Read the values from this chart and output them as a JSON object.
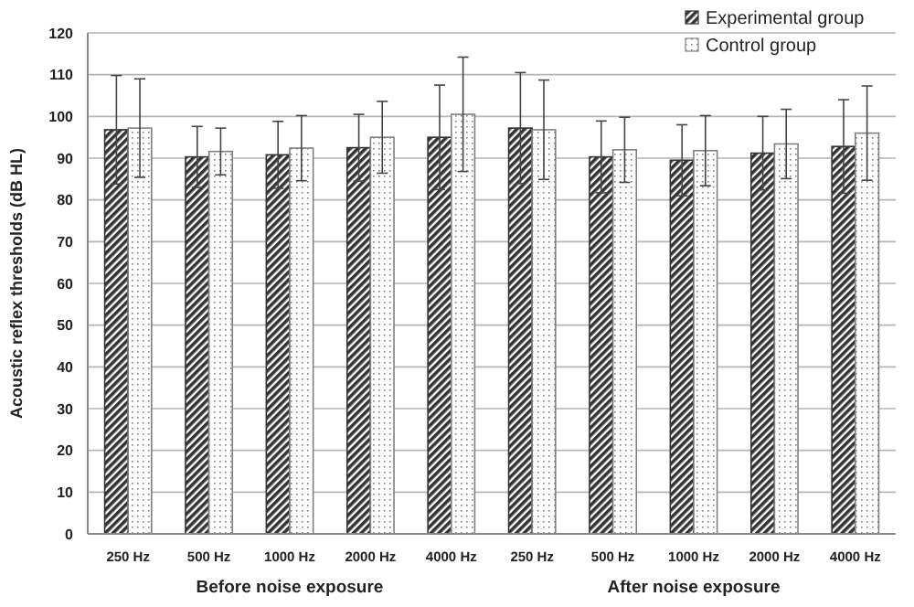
{
  "chart_data": {
    "type": "bar",
    "ylabel": "Acoustic reflex thresholds (dB HL)",
    "categories": [
      "250 Hz",
      "500 Hz",
      "1000 Hz",
      "2000 Hz",
      "4000 Hz",
      "250 Hz",
      "500 Hz",
      "1000 Hz",
      "2000 Hz",
      "4000 Hz"
    ],
    "series": [
      {
        "name": "Experimental group",
        "color": "#333333",
        "values": [
          96.8,
          90.3,
          90.8,
          92.5,
          95.0,
          97.2,
          90.3,
          89.5,
          91.2,
          92.8
        ],
        "errors": [
          13,
          7.3,
          8,
          8,
          12.5,
          13.3,
          8.6,
          8.5,
          8.8,
          11.2
        ]
      },
      {
        "name": "Control group",
        "color": "#808080",
        "values": [
          97.2,
          91.6,
          92.4,
          95.0,
          100.5,
          96.8,
          92.0,
          91.8,
          93.4,
          96.0
        ],
        "errors": [
          11.8,
          5.6,
          7.8,
          8.6,
          13.7,
          11.9,
          7.8,
          8.4,
          8.3,
          11.3
        ]
      }
    ],
    "annotations": [
      "Before noise exposure",
      "After noise exposure"
    ],
    "ylim": [
      0,
      120
    ],
    "yticks": [
      0,
      10,
      20,
      30,
      40,
      50,
      60,
      70,
      80,
      90,
      100,
      110,
      120
    ],
    "grid": "y",
    "legend": "top right"
  }
}
